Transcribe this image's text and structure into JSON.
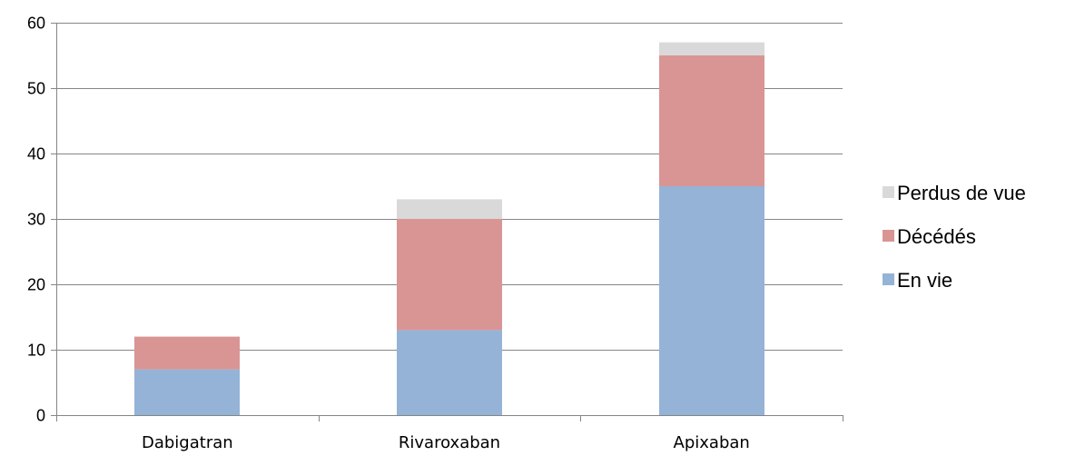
{
  "chart_data": {
    "type": "bar",
    "stacked": true,
    "categories": [
      "Dabigatran",
      "Rivaroxaban",
      "Apixaban"
    ],
    "series": [
      {
        "name": "En vie",
        "values": [
          7,
          13,
          35
        ],
        "color": "#95b3d7"
      },
      {
        "name": "Décédés",
        "values": [
          5,
          17,
          20
        ],
        "color": "#d99594"
      },
      {
        "name": "Perdus de vue",
        "values": [
          0,
          3,
          2
        ],
        "color": "#d9d9d9"
      }
    ],
    "ylim": [
      0,
      60
    ],
    "yticks": [
      0,
      10,
      20,
      30,
      40,
      50,
      60
    ],
    "grid": true,
    "legend_position": "right",
    "legend_order": [
      "Perdus de vue",
      "Décédés",
      "En vie"
    ],
    "gridline_color": "#868686",
    "axis_color": "#868686"
  }
}
